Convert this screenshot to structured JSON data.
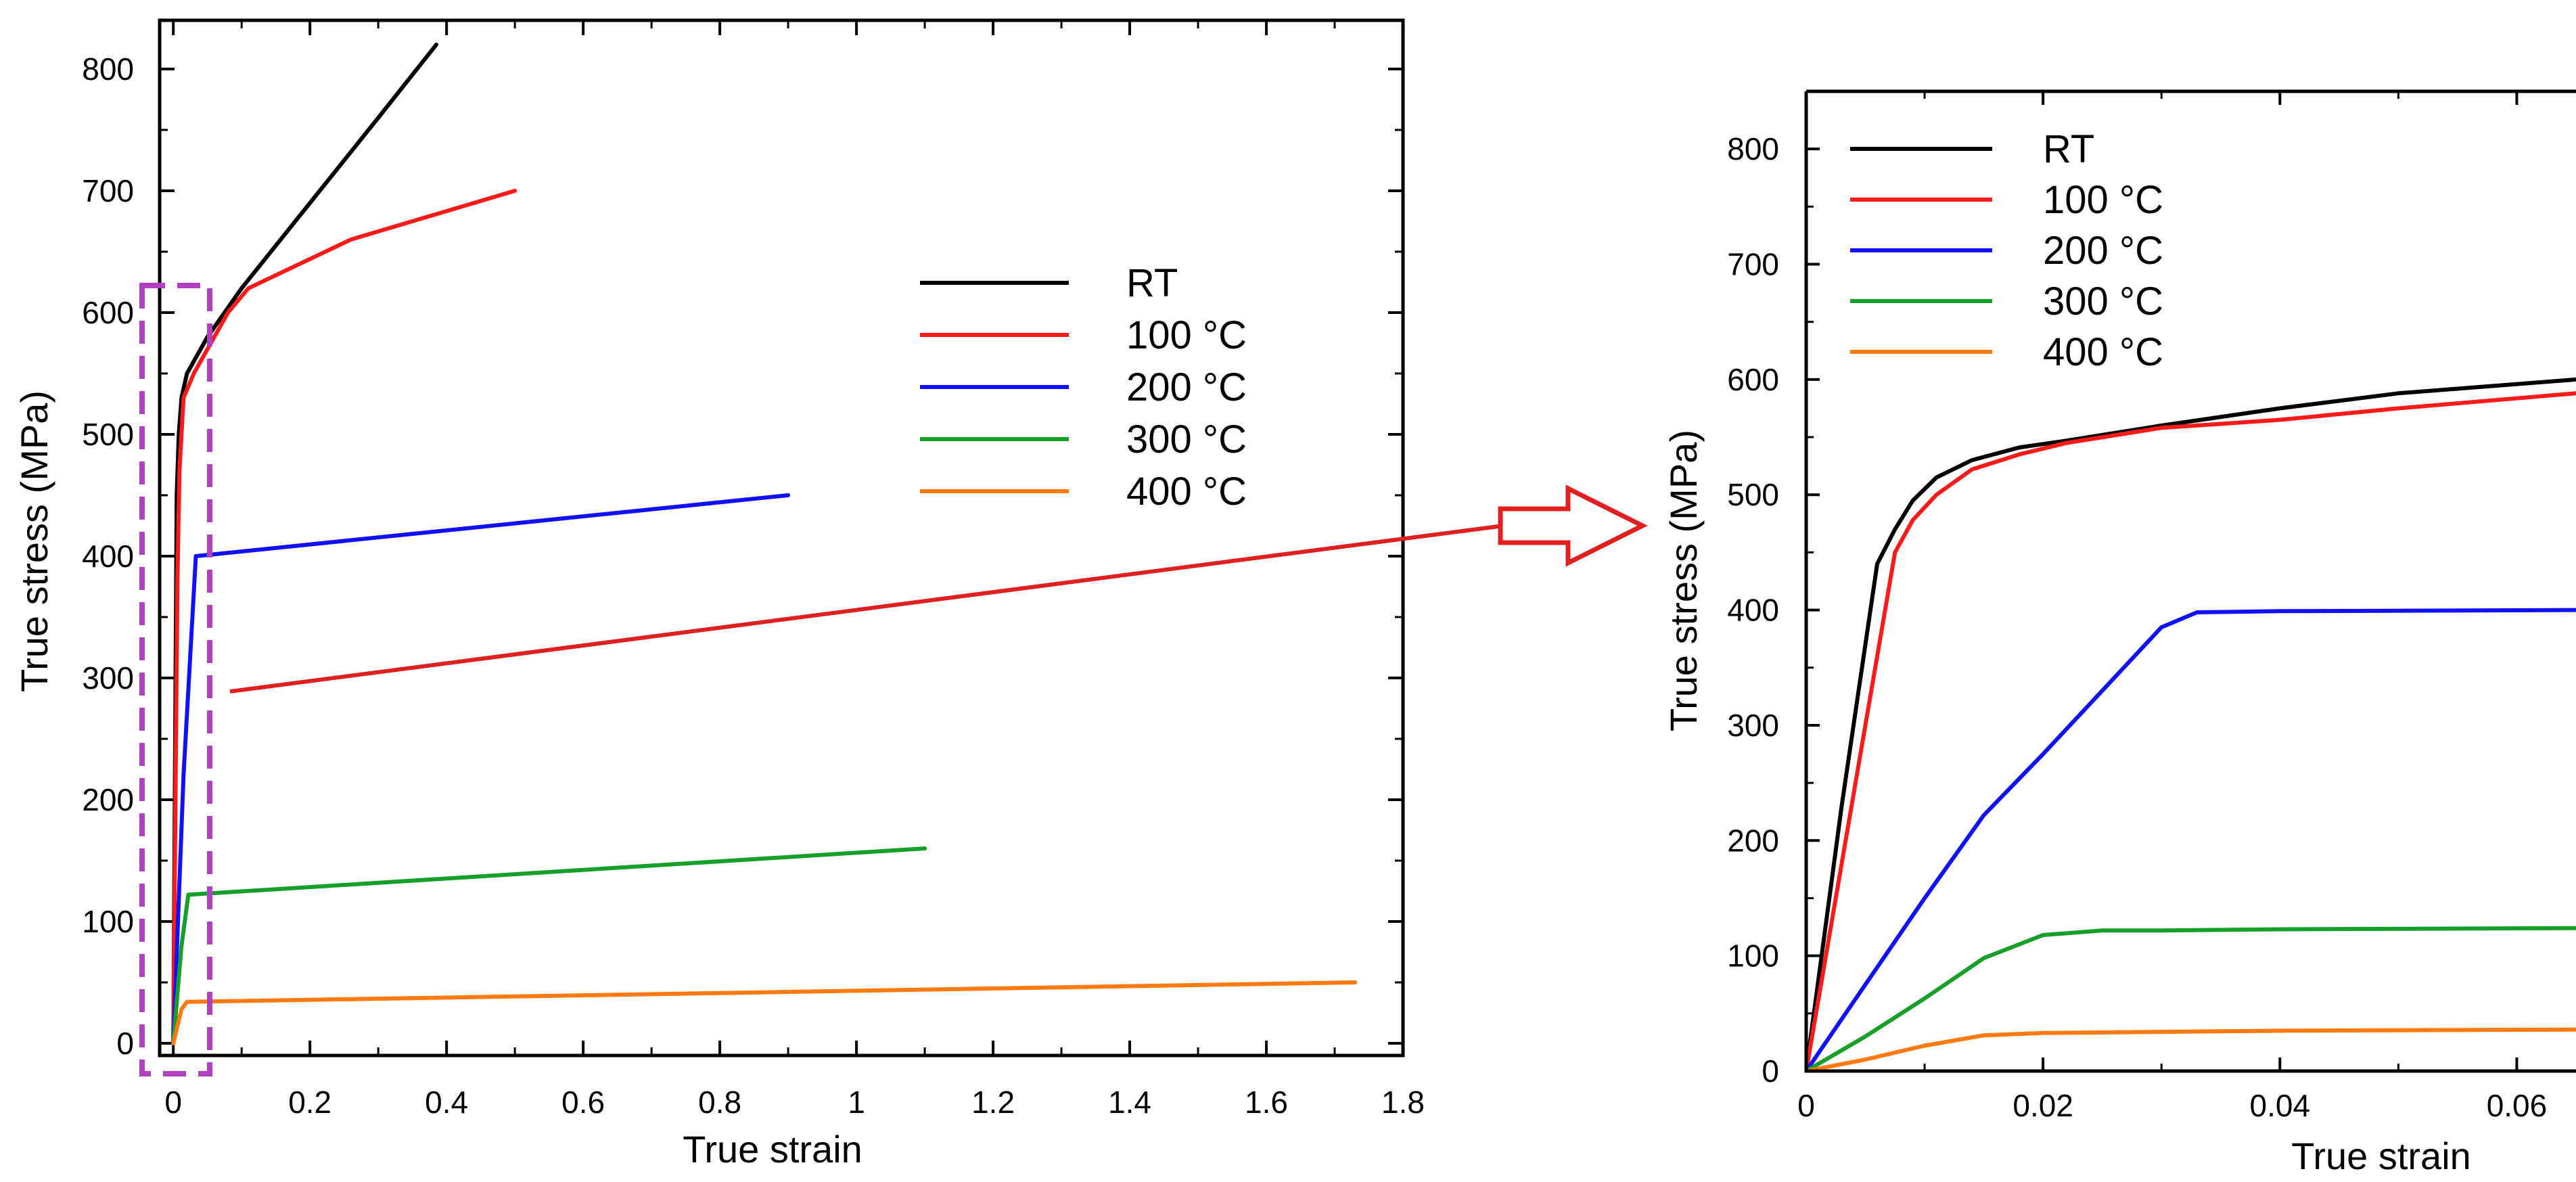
{
  "colors": {
    "RT": "#000000",
    "100 °C": "#ff1a1a",
    "200 °C": "#1010ff",
    "300 °C": "#16a02a",
    "400 °C": "#ff7a10",
    "zoom_box": "#b040c0",
    "arrow": "#e02020"
  },
  "chart_data": [
    {
      "type": "line",
      "title": "",
      "xlabel": "True strain",
      "ylabel": "True stress (MPa)",
      "xlim": [
        -0.02,
        1.8
      ],
      "ylim": [
        -10,
        840
      ],
      "xticks": [
        "0",
        "0.2",
        "0.4",
        "0.6",
        "0.8",
        "1",
        "1.2",
        "1.4",
        "1.6",
        "1.8"
      ],
      "yticks": [
        "0",
        "100",
        "200",
        "300",
        "400",
        "500",
        "600",
        "700",
        "800"
      ],
      "legend_position": "upper-right",
      "series": [
        {
          "name": "RT",
          "x": [
            0,
            0.005,
            0.008,
            0.012,
            0.02,
            0.05,
            0.1,
            0.2,
            0.3,
            0.385
          ],
          "y": [
            0,
            450,
            500,
            530,
            550,
            580,
            620,
            690,
            760,
            820
          ]
        },
        {
          "name": "100 °C",
          "x": [
            0,
            0.006,
            0.009,
            0.015,
            0.03,
            0.05,
            0.08,
            0.11,
            0.26,
            0.5
          ],
          "y": [
            0,
            380,
            470,
            530,
            550,
            570,
            600,
            620,
            660,
            700
          ]
        },
        {
          "name": "200 °C",
          "x": [
            0,
            0.015,
            0.033,
            0.9
          ],
          "y": [
            0,
            220,
            400,
            450
          ]
        },
        {
          "name": "300 °C",
          "x": [
            0,
            0.012,
            0.022,
            1.1
          ],
          "y": [
            0,
            80,
            122,
            160
          ]
        },
        {
          "name": "400 °C",
          "x": [
            0,
            0.012,
            0.02,
            1.73
          ],
          "y": [
            0,
            28,
            34,
            50
          ]
        }
      ]
    },
    {
      "type": "line",
      "title": "",
      "xlabel": "True strain",
      "ylabel": "True stress (MPa)",
      "xlim": [
        0,
        0.065
      ],
      "ylim": [
        0,
        850
      ],
      "xticks": [
        "0",
        "0.02",
        "0.04",
        "0.06"
      ],
      "yticks": [
        "0",
        "100",
        "200",
        "300",
        "400",
        "500",
        "600",
        "700",
        "800"
      ],
      "legend_position": "upper-left",
      "series": [
        {
          "name": "RT",
          "x": [
            0,
            0.003,
            0.006,
            0.0075,
            0.009,
            0.011,
            0.014,
            0.018,
            0.022,
            0.03,
            0.04,
            0.05,
            0.065
          ],
          "y": [
            0,
            230,
            440,
            470,
            495,
            515,
            530,
            541,
            547,
            560,
            575,
            588,
            600
          ]
        },
        {
          "name": "100 °C",
          "x": [
            0,
            0.003,
            0.006,
            0.0075,
            0.009,
            0.011,
            0.014,
            0.018,
            0.022,
            0.03,
            0.04,
            0.05,
            0.065
          ],
          "y": [
            0,
            180,
            360,
            450,
            478,
            500,
            522,
            535,
            545,
            558,
            565,
            575,
            588
          ]
        },
        {
          "name": "200 °C",
          "x": [
            0,
            0.005,
            0.01,
            0.015,
            0.02,
            0.025,
            0.03,
            0.033,
            0.04,
            0.065
          ],
          "y": [
            0,
            75,
            150,
            222,
            275,
            330,
            385,
            398,
            399,
            400
          ]
        },
        {
          "name": "300 °C",
          "x": [
            0,
            0.005,
            0.01,
            0.015,
            0.02,
            0.025,
            0.03,
            0.04,
            0.065
          ],
          "y": [
            0,
            30,
            63,
            98,
            118,
            122,
            122,
            123,
            124
          ]
        },
        {
          "name": "400 °C",
          "x": [
            0,
            0.005,
            0.01,
            0.015,
            0.02,
            0.03,
            0.04,
            0.065
          ],
          "y": [
            0,
            10,
            22,
            31,
            33,
            34,
            35,
            36
          ]
        }
      ]
    }
  ]
}
